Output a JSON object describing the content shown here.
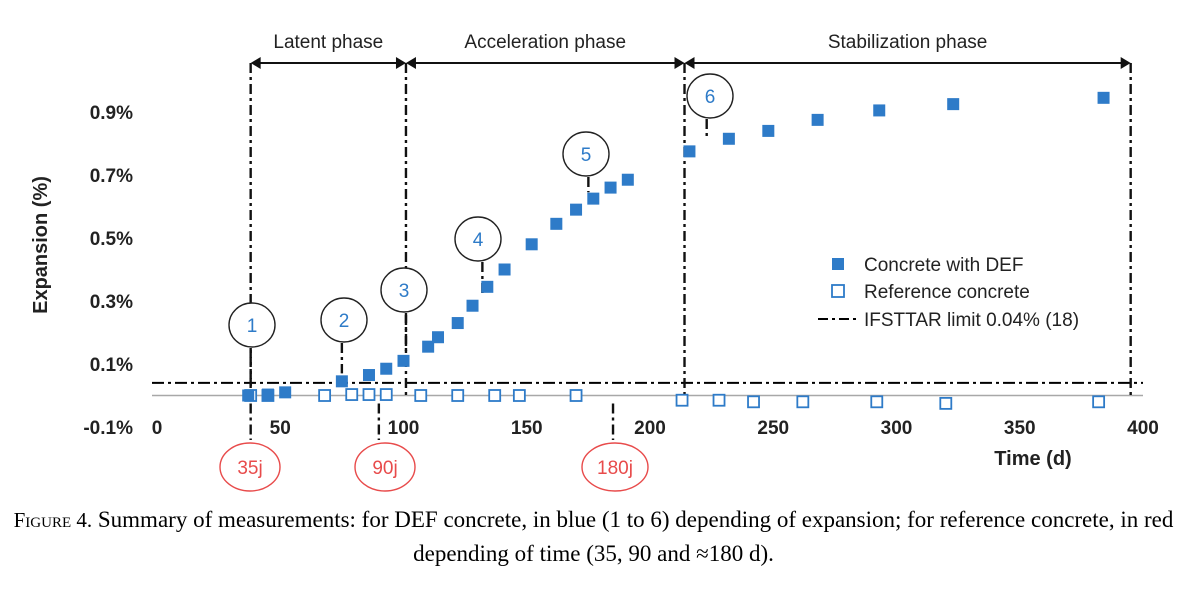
{
  "colors": {
    "def": "#2e7bc8",
    "reference": "#2e7bc8",
    "time_marker": "#e84b4b",
    "number_marker": "#2e7bc8",
    "axis": "#a8a8a8",
    "limit_line": "#000000"
  },
  "chart_data": {
    "type": "scatter",
    "xlabel": "Time (d)",
    "ylabel": "Expansion (%)",
    "xlim": [
      0,
      400
    ],
    "ylim": [
      -0.1,
      1.0
    ],
    "x_ticks": [
      0,
      50,
      100,
      150,
      200,
      250,
      300,
      350,
      400
    ],
    "x_tick_labels": [
      "0",
      "50",
      "100",
      "150",
      "200",
      "250",
      "300",
      "350",
      "400"
    ],
    "y_ticks": [
      -0.1,
      0.1,
      0.3,
      0.5,
      0.7,
      0.9
    ],
    "y_tick_labels": [
      "-0.1%",
      "0.1%",
      "0.3%",
      "0.5%",
      "0.7%",
      "0.9%"
    ],
    "grid": false,
    "legend_position": "right",
    "series": [
      {
        "name": "Concrete with DEF",
        "marker": "filled-square",
        "x": [
          37,
          45,
          52,
          75,
          86,
          93,
          100,
          110,
          114,
          122,
          128,
          134,
          141,
          152,
          162,
          170,
          177,
          184,
          191,
          216,
          232,
          248,
          268,
          293,
          323,
          384
        ],
        "y": [
          0.0,
          0.003,
          0.01,
          0.045,
          0.065,
          0.085,
          0.11,
          0.155,
          0.185,
          0.23,
          0.285,
          0.345,
          0.4,
          0.48,
          0.545,
          0.59,
          0.625,
          0.66,
          0.685,
          0.775,
          0.815,
          0.84,
          0.875,
          0.905,
          0.925,
          0.945
        ]
      },
      {
        "name": "Reference concrete",
        "marker": "open-square",
        "x": [
          38,
          45,
          68,
          79,
          86,
          93,
          107,
          122,
          137,
          147,
          170,
          213,
          228,
          242,
          262,
          292,
          320,
          382
        ],
        "y": [
          0.0,
          0.0,
          0.0,
          0.003,
          0.003,
          0.003,
          0.0,
          0.0,
          0.0,
          0.0,
          0.0,
          -0.015,
          -0.015,
          -0.02,
          -0.02,
          -0.02,
          -0.025,
          -0.02
        ]
      }
    ],
    "reference_line": {
      "name": "IFSTTAR limit 0.04% (18)",
      "y": 0.04
    },
    "phases": [
      {
        "label": "Latent phase",
        "start": 38,
        "end": 101
      },
      {
        "label": "Acceleration phase",
        "start": 101,
        "end": 214
      },
      {
        "label": "Stabilization phase",
        "start": 214,
        "end": 395
      }
    ],
    "expansion_markers": [
      {
        "label": "1",
        "x": 38,
        "y": 0.0
      },
      {
        "label": "2",
        "x": 75,
        "y": 0.045
      },
      {
        "label": "3",
        "x": 101,
        "y": 0.11
      },
      {
        "label": "4",
        "x": 132,
        "y": 0.3
      },
      {
        "label": "5",
        "x": 175,
        "y": 0.62
      },
      {
        "label": "6",
        "x": 223,
        "y": 0.79
      }
    ],
    "time_markers": [
      {
        "label": "35j",
        "x": 38
      },
      {
        "label": "90j",
        "x": 90
      },
      {
        "label": "180j",
        "x": 185
      }
    ]
  },
  "caption": {
    "label": "Figure 4.",
    "text": " Summary of measurements: for DEF concrete, in blue (1 to 6) depending of expansion; for reference concrete, in red depending of time (35, 90 and ≈180 d)."
  }
}
